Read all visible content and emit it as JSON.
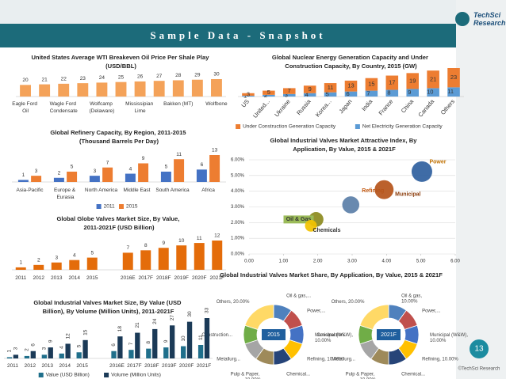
{
  "header": {
    "title": "Sample Data - Snapshot",
    "logo": "TechSci Research",
    "page": "13",
    "copyright": "©TechSci Research"
  },
  "chart_data": [
    {
      "type": "bar",
      "title": "United States Average WTI Breakeven Oil Price Per Shale Play (USD/BBL)",
      "categories": [
        "Eagle Ford Oil",
        null,
        "Wagle Ford Condensate",
        null,
        "Wolfcamp (Delaware)",
        null,
        "Mississipian Lime",
        null,
        "Bakken (MT)",
        null,
        "Wolfbone"
      ],
      "values": [
        20,
        21,
        22,
        23,
        24,
        25,
        26,
        27,
        28,
        29,
        30
      ],
      "color": "#f4a259"
    },
    {
      "type": "stacked_bar",
      "title": "Global Nuclear Energy Generation Capacity and Under Construction Capacity, By Country, 2015 (GW)",
      "categories": [
        "US",
        "United...",
        "Ukraine",
        "Russia",
        "Korea...",
        "Japan",
        "India",
        "France",
        "China",
        "Canada",
        "Others"
      ],
      "series": [
        {
          "name": "Under Construction Generation Capacity",
          "color": "#ed7d31",
          "values": [
            3,
            5,
            7,
            9,
            11,
            13,
            15,
            17,
            19,
            21,
            23
          ]
        },
        {
          "name": "Net Electricity Generation Capacity",
          "color": "#5b9bd5",
          "values": [
            1,
            2,
            3,
            4,
            5,
            6,
            7,
            8,
            9,
            10,
            11
          ]
        }
      ]
    },
    {
      "type": "grouped_bar",
      "title": "Global Refinery Capacity, By Region, 2011-2015 (Thousand Barrels Per Day)",
      "categories": [
        "Asia-Pacific",
        "Europe & Eurasia",
        "North America",
        "Middle East",
        "South America",
        "Africa"
      ],
      "series": [
        {
          "name": "2011",
          "color": "#4472c4",
          "values": [
            1,
            2,
            3,
            4,
            5,
            6
          ]
        },
        {
          "name": "2015",
          "color": "#ed7d31",
          "values": [
            3,
            5,
            7,
            9,
            11,
            13
          ]
        }
      ]
    },
    {
      "type": "bar",
      "title": "Global Globe Valves Market Size, By Value, 2011-2021F (USD Billion)",
      "categories": [
        "2011",
        "2012",
        "2013",
        "2014",
        "2015",
        "2016E",
        "2017F",
        "2018F",
        "2019F",
        "2020F",
        "2021F"
      ],
      "values": [
        1,
        2,
        3,
        4,
        5,
        7,
        8,
        9,
        10,
        11,
        12
      ],
      "color": "#e46c0a"
    },
    {
      "type": "scatter",
      "title": "Global Industrial Valves Market Attractive Index, By Application, By Value, 2015 & 2021F",
      "xlim": [
        0,
        6
      ],
      "ylim": [
        0,
        6
      ],
      "xticks": [
        {
          "value": 0,
          "label": "0.00"
        },
        {
          "value": 1,
          "label": "1.00"
        },
        {
          "value": 2,
          "label": "2.00"
        },
        {
          "value": 3,
          "label": "3.00"
        },
        {
          "value": 4,
          "label": "4.00"
        },
        {
          "value": 5,
          "label": "5.00"
        },
        {
          "value": 6,
          "label": "6.00"
        }
      ],
      "yticks": [
        {
          "value": 0,
          "label": "0.00%"
        },
        {
          "value": 1,
          "label": "1.00%"
        },
        {
          "value": 2,
          "label": "2.00%"
        },
        {
          "value": 3,
          "label": "3.00%"
        },
        {
          "value": 4,
          "label": "4.00%"
        },
        {
          "value": 5,
          "label": "5.00%"
        },
        {
          "value": 6,
          "label": "6.00%"
        }
      ],
      "grid": true,
      "points": [
        {
          "name": "Oil & Gas",
          "x": 1.95,
          "y": 2.2,
          "size": 2,
          "color": "#8c8a1e"
        },
        {
          "name": "Chemicals",
          "x": 1.8,
          "y": 1.8,
          "size": 1,
          "color": "#f2c200"
        },
        {
          "name": "Refining",
          "x": 2.96,
          "y": 3.13,
          "size": 3,
          "color": "#5b7fa8"
        },
        {
          "name": "Municipal",
          "x": 3.93,
          "y": 4.1,
          "size": 4,
          "color": "#b5541a"
        },
        {
          "name": "Power",
          "x": 5.03,
          "y": 5.25,
          "size": 5,
          "color": "#2f5f9e"
        }
      ]
    },
    {
      "type": "donut",
      "title": "Global Industrial Valves Market Share, By Application, By Value, 2015 & 2021F",
      "colors": [
        "#4f81bd",
        "#c0504d",
        "#4472c4",
        "#ffc000",
        "#264478",
        "#9e8a5a",
        "#a5a5a5",
        "#70ad47",
        "#ffd966"
      ],
      "pies": [
        {
          "center": "2015",
          "values": [
            10,
            10,
            10,
            10,
            10,
            10,
            10,
            10,
            20
          ],
          "labels": [
            "Oil & gas,...",
            "Power,...",
            "Municipal (W&W), 10.00%",
            "Refining, 10.00%",
            "Chemical...",
            "Pulp & Paper, 10.00%",
            "Metallurg...",
            "Construction...",
            "Others, 20.00%"
          ]
        },
        {
          "center": "2021F",
          "values": [
            10,
            10,
            10,
            10,
            10,
            10,
            10,
            10,
            20
          ],
          "labels": [
            "Oil & gas, 10.00%",
            "Power,...",
            "Municipal (W&W), 10.00%",
            "Refining, 10.00%",
            "Chemical...",
            "Pulp & Paper, 10.00%",
            "Metallurg...",
            "Construction...",
            "Others, 20.00%"
          ]
        }
      ]
    },
    {
      "type": "grouped_bar",
      "title": "Global Industrial Valves Market Size, By Value (USD Billion), By Volume (Million Units), 2011-2021F",
      "categories": [
        "2011",
        "2012",
        "2013",
        "2014",
        "2015",
        "2016E",
        "2017F",
        "2018F",
        "2019F",
        "2020F",
        "2021F"
      ],
      "series": [
        {
          "name": "Value (USD Billion)",
          "color": "#1f6f8b",
          "values": [
            1,
            2,
            3,
            4,
            5,
            6,
            7,
            8,
            9,
            10,
            11
          ]
        },
        {
          "name": "Volume (Million Units)",
          "color": "#1b3a57",
          "values": [
            3,
            6,
            9,
            12,
            15,
            18,
            21,
            24,
            27,
            30,
            33
          ]
        }
      ]
    }
  ]
}
